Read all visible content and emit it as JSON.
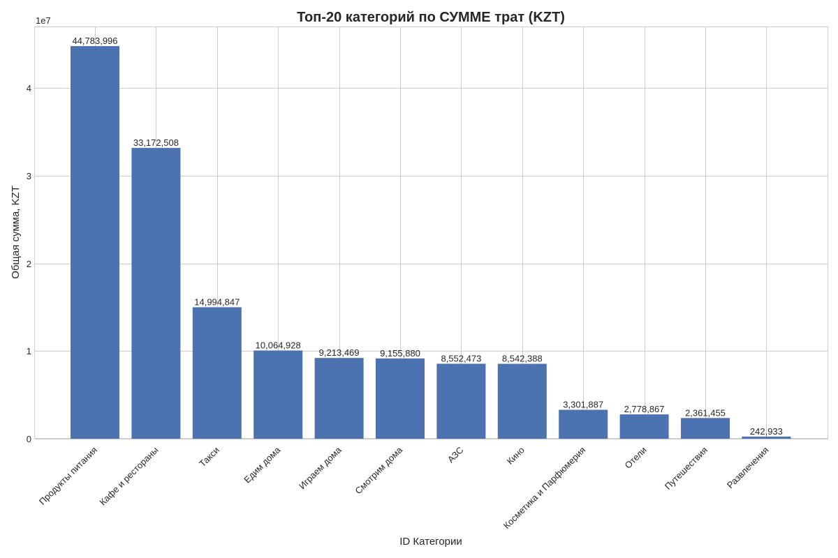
{
  "chart_data": {
    "type": "bar",
    "title": "Топ-20 категорий по СУММЕ трат (KZT)",
    "xlabel": "ID Категории",
    "ylabel": "Общая сумма, KZT",
    "y_offset_label": "1e7",
    "y_tick_values": [
      0,
      10000000,
      20000000,
      30000000,
      40000000
    ],
    "y_tick_labels": [
      "0",
      "1",
      "2",
      "3",
      "4"
    ],
    "ylim": [
      0,
      47023196
    ],
    "grid": true,
    "color": "#4c72b0",
    "categories": [
      "Продукты питания",
      "Кафе и рестораны",
      "Такси",
      "Едим дома",
      "Играем дома",
      "Смотрим дома",
      "АЗС",
      "Кино",
      "Косметика и Парфюмерия",
      "Отели",
      "Путешествия",
      "Развлечения"
    ],
    "values": [
      44783996,
      33172508,
      14994847,
      10064928,
      9213469,
      9155880,
      8552473,
      8542388,
      3301887,
      2778867,
      2361455,
      242933
    ],
    "value_labels": [
      "44,783,996",
      "33,172,508",
      "14,994,847",
      "10,064,928",
      "9,213,469",
      "9,155,880",
      "8,552,473",
      "8,542,388",
      "3,301,887",
      "2,778,867",
      "2,361,455",
      "242,933"
    ]
  }
}
